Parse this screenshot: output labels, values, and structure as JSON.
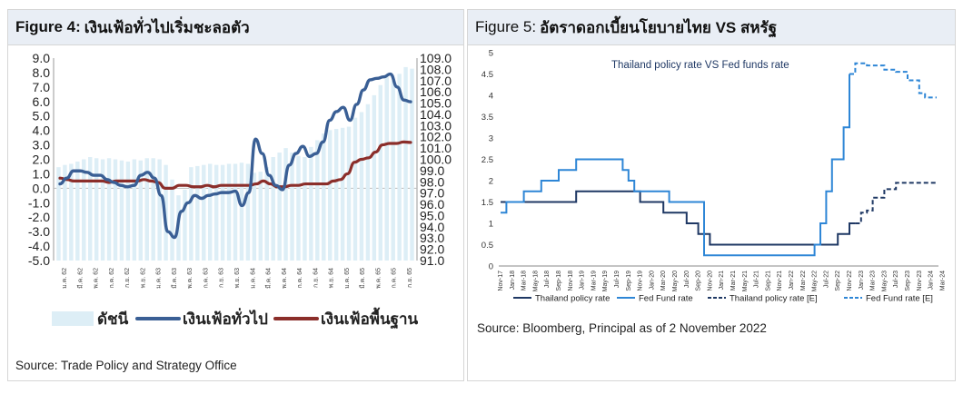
{
  "fig4": {
    "label": "Figure 4:",
    "title": "เงินเฟ้อทั่วไปเริ่มชะลอตัว",
    "source": "Source: Trade Policy and Strategy Office",
    "legend": {
      "index": {
        "label": "ดัชนี",
        "value": "108.06",
        "color": "#ddeef6"
      },
      "headline": {
        "label": "เงินเฟ้อทั่วไป",
        "value": "5.98%",
        "color": "#3a5f95"
      },
      "core": {
        "label": "เงินเฟ้อพื้นฐาน",
        "value": "3.17%",
        "color": "#8b2e2a"
      }
    }
  },
  "fig5": {
    "label": "Figure 5:",
    "title": "อัตราดอกเบี้ยนโยบายไทย VS สหรัฐ",
    "source": "Source: Bloomberg, Principal as of 2 November 2022",
    "legend": [
      {
        "label": "Thailand policy rate",
        "color": "#1f3864",
        "dash": false
      },
      {
        "label": "Fed Fund rate",
        "color": "#2e86d6",
        "dash": false
      },
      {
        "label": "Thailand policy rate [E]",
        "color": "#1f3864",
        "dash": true
      },
      {
        "label": "Fed Fund rate [E]",
        "color": "#2e86d6",
        "dash": true
      }
    ]
  },
  "chart_data": [
    {
      "type": "line",
      "title": "เงินเฟ้อทั่วไปเริ่มชะลอตัว",
      "y_left": {
        "ylim": [
          -5,
          9
        ],
        "ticks": [
          "9.0",
          "8.0",
          "7.0",
          "6.0",
          "5.0",
          "4.0",
          "3.0",
          "2.0",
          "1.0",
          "0.0",
          "-1.0",
          "-2.0",
          "-3.0",
          "-4.0",
          "-5.0"
        ]
      },
      "y_right": {
        "ylim": [
          91,
          109
        ],
        "ticks": [
          "109.0",
          "108.0",
          "107.0",
          "106.0",
          "105.0",
          "104.0",
          "103.0",
          "102.0",
          "101.0",
          "100.0",
          "99.0",
          "98.0",
          "97.0",
          "96.0",
          "95.0",
          "94.0",
          "93.0",
          "92.0",
          "91.0"
        ]
      },
      "x_tick_labels": [
        "ม.ค. 62",
        "มี.ค. 62",
        "พ.ค. 62",
        "ก.ค. 62",
        "ก.ย. 62",
        "พ.ย. 62",
        "ม.ค. 63",
        "มี.ค. 63",
        "พ.ค. 63",
        "ก.ค. 63",
        "ก.ย. 63",
        "พ.ย. 63",
        "ม.ค. 64",
        "มี.ค. 64",
        "พ.ค. 64",
        "ก.ค. 64",
        "ก.ย. 64",
        "พ.ย. 64",
        "ม.ค. 65",
        "มี.ค. 65",
        "พ.ค. 65",
        "ก.ค. 65",
        "ก.ย. 65"
      ],
      "series": [
        {
          "name": "ดัชนี",
          "kind": "bar",
          "axis": "right",
          "values": [
            99.3,
            99.5,
            99.6,
            99.8,
            100.0,
            100.2,
            100.1,
            100.0,
            100.1,
            100.0,
            99.9,
            99.8,
            100.0,
            99.9,
            100.1,
            100.1,
            100.0,
            99.5,
            98.2,
            96.8,
            97.3,
            99.3,
            99.4,
            99.5,
            99.6,
            99.5,
            99.5,
            99.6,
            99.6,
            99.7,
            99.6,
            98.8,
            98.9,
            99.3,
            100.2,
            100.6,
            101.0,
            100.6,
            100.3,
            100.2,
            101.1,
            101.7,
            102.3,
            102.6,
            102.7,
            102.8,
            102.9,
            103.7,
            104.2,
            104.9,
            105.7,
            106.6,
            107.3,
            107.0,
            107.6,
            108.2,
            108.06
          ]
        },
        {
          "name": "เงินเฟ้อทั่วไป",
          "kind": "line",
          "axis": "left",
          "values": [
            0.3,
            0.7,
            1.2,
            1.2,
            1.1,
            0.9,
            0.9,
            0.6,
            0.4,
            0.2,
            0.1,
            0.2,
            0.9,
            1.1,
            0.7,
            -0.5,
            -3.0,
            -3.4,
            -1.6,
            -1.0,
            -0.5,
            -0.7,
            -0.5,
            -0.4,
            -0.3,
            -0.3,
            -0.2,
            -1.2,
            -0.3,
            3.4,
            2.4,
            0.9,
            0.2,
            -0.1,
            1.6,
            2.4,
            2.9,
            2.2,
            2.4,
            3.2,
            4.7,
            5.3,
            5.6,
            4.7,
            5.8,
            6.8,
            7.5,
            7.6,
            7.7,
            7.9,
            7.0,
            6.1,
            5.98
          ]
        },
        {
          "name": "เงินเฟ้อพื้นฐาน",
          "kind": "line",
          "axis": "left",
          "values": [
            0.7,
            0.6,
            0.5,
            0.5,
            0.5,
            0.5,
            0.5,
            0.4,
            0.5,
            0.5,
            0.5,
            0.5,
            0.6,
            0.5,
            0.4,
            0.0,
            0.0,
            0.2,
            0.2,
            0.1,
            0.1,
            0.2,
            0.1,
            0.2,
            0.2,
            0.2,
            0.2,
            0.2,
            0.3,
            0.5,
            0.3,
            0.1,
            0.1,
            0.2,
            0.2,
            0.3,
            0.3,
            0.3,
            0.3,
            0.5,
            0.6,
            1.0,
            1.8,
            2.0,
            2.1,
            2.5,
            3.0,
            3.1,
            3.1,
            3.2,
            3.17
          ]
        }
      ]
    },
    {
      "type": "line",
      "title": "Thailand policy rate VS Fed funds rate",
      "ylim": [
        0,
        5
      ],
      "y_ticks": [
        "5",
        "4.5",
        "4",
        "3.5",
        "3",
        "2.5",
        "2",
        "1.5",
        "1",
        "0.5",
        "0"
      ],
      "x_tick_labels": [
        "Nov-17",
        "Jan-18",
        "Mar-18",
        "May-18",
        "Jul-18",
        "Sep-18",
        "Nov-18",
        "Jan-19",
        "Mar-19",
        "May-19",
        "Jul-19",
        "Sep-19",
        "Nov-19",
        "Jan-20",
        "Mar-20",
        "May-20",
        "Jul-20",
        "Sep-20",
        "Nov-20",
        "Jan-21",
        "Mar-21",
        "May-21",
        "Jul-21",
        "Sep-21",
        "Nov-21",
        "Jan-22",
        "Mar-22",
        "May-22",
        "Jul-22",
        "Sep-22",
        "Nov-22",
        "Jan-23",
        "Mar-23",
        "May-23",
        "Jul-23",
        "Sep-23",
        "Nov-23",
        "Jan-24",
        "Mar-24"
      ],
      "series": [
        {
          "name": "Thailand policy rate",
          "points": [
            [
              0,
              1.5
            ],
            [
              12,
              1.5
            ],
            [
              13,
              1.75
            ],
            [
              23,
              1.75
            ],
            [
              24,
              1.5
            ],
            [
              27,
              1.5
            ],
            [
              28,
              1.25
            ],
            [
              31,
              1.25
            ],
            [
              32,
              1.0
            ],
            [
              33,
              1.0
            ],
            [
              34,
              0.75
            ],
            [
              35,
              0.75
            ],
            [
              36,
              0.5
            ],
            [
              57,
              0.5
            ],
            [
              58,
              0.75
            ],
            [
              59,
              0.75
            ],
            [
              60,
              1.0
            ],
            [
              61,
              1.0
            ]
          ]
        },
        {
          "name": "Fed Fund rate",
          "points": [
            [
              0,
              1.25
            ],
            [
              1,
              1.5
            ],
            [
              4,
              1.75
            ],
            [
              7,
              2.0
            ],
            [
              10,
              2.25
            ],
            [
              13,
              2.5
            ],
            [
              20,
              2.5
            ],
            [
              21,
              2.25
            ],
            [
              22,
              2.0
            ],
            [
              23,
              1.75
            ],
            [
              28,
              1.75
            ],
            [
              29,
              1.5
            ],
            [
              35,
              0.25
            ],
            [
              53,
              0.25
            ],
            [
              54,
              0.5
            ],
            [
              55,
              1.0
            ],
            [
              56,
              1.75
            ],
            [
              57,
              2.5
            ],
            [
              59,
              3.25
            ],
            [
              60,
              4.5
            ]
          ]
        },
        {
          "name": "Thailand policy rate [E]",
          "points": [
            [
              61,
              1.0
            ],
            [
              62,
              1.25
            ],
            [
              63,
              1.3
            ],
            [
              64,
              1.6
            ],
            [
              66,
              1.8
            ],
            [
              68,
              1.95
            ],
            [
              75,
              1.95
            ]
          ]
        },
        {
          "name": "Fed Fund rate [E]",
          "points": [
            [
              60,
              4.5
            ],
            [
              61,
              4.75
            ],
            [
              63,
              4.7
            ],
            [
              66,
              4.6
            ],
            [
              68,
              4.55
            ],
            [
              70,
              4.35
            ],
            [
              72,
              4.05
            ],
            [
              73,
              3.95
            ],
            [
              75,
              3.95
            ]
          ]
        }
      ]
    }
  ]
}
